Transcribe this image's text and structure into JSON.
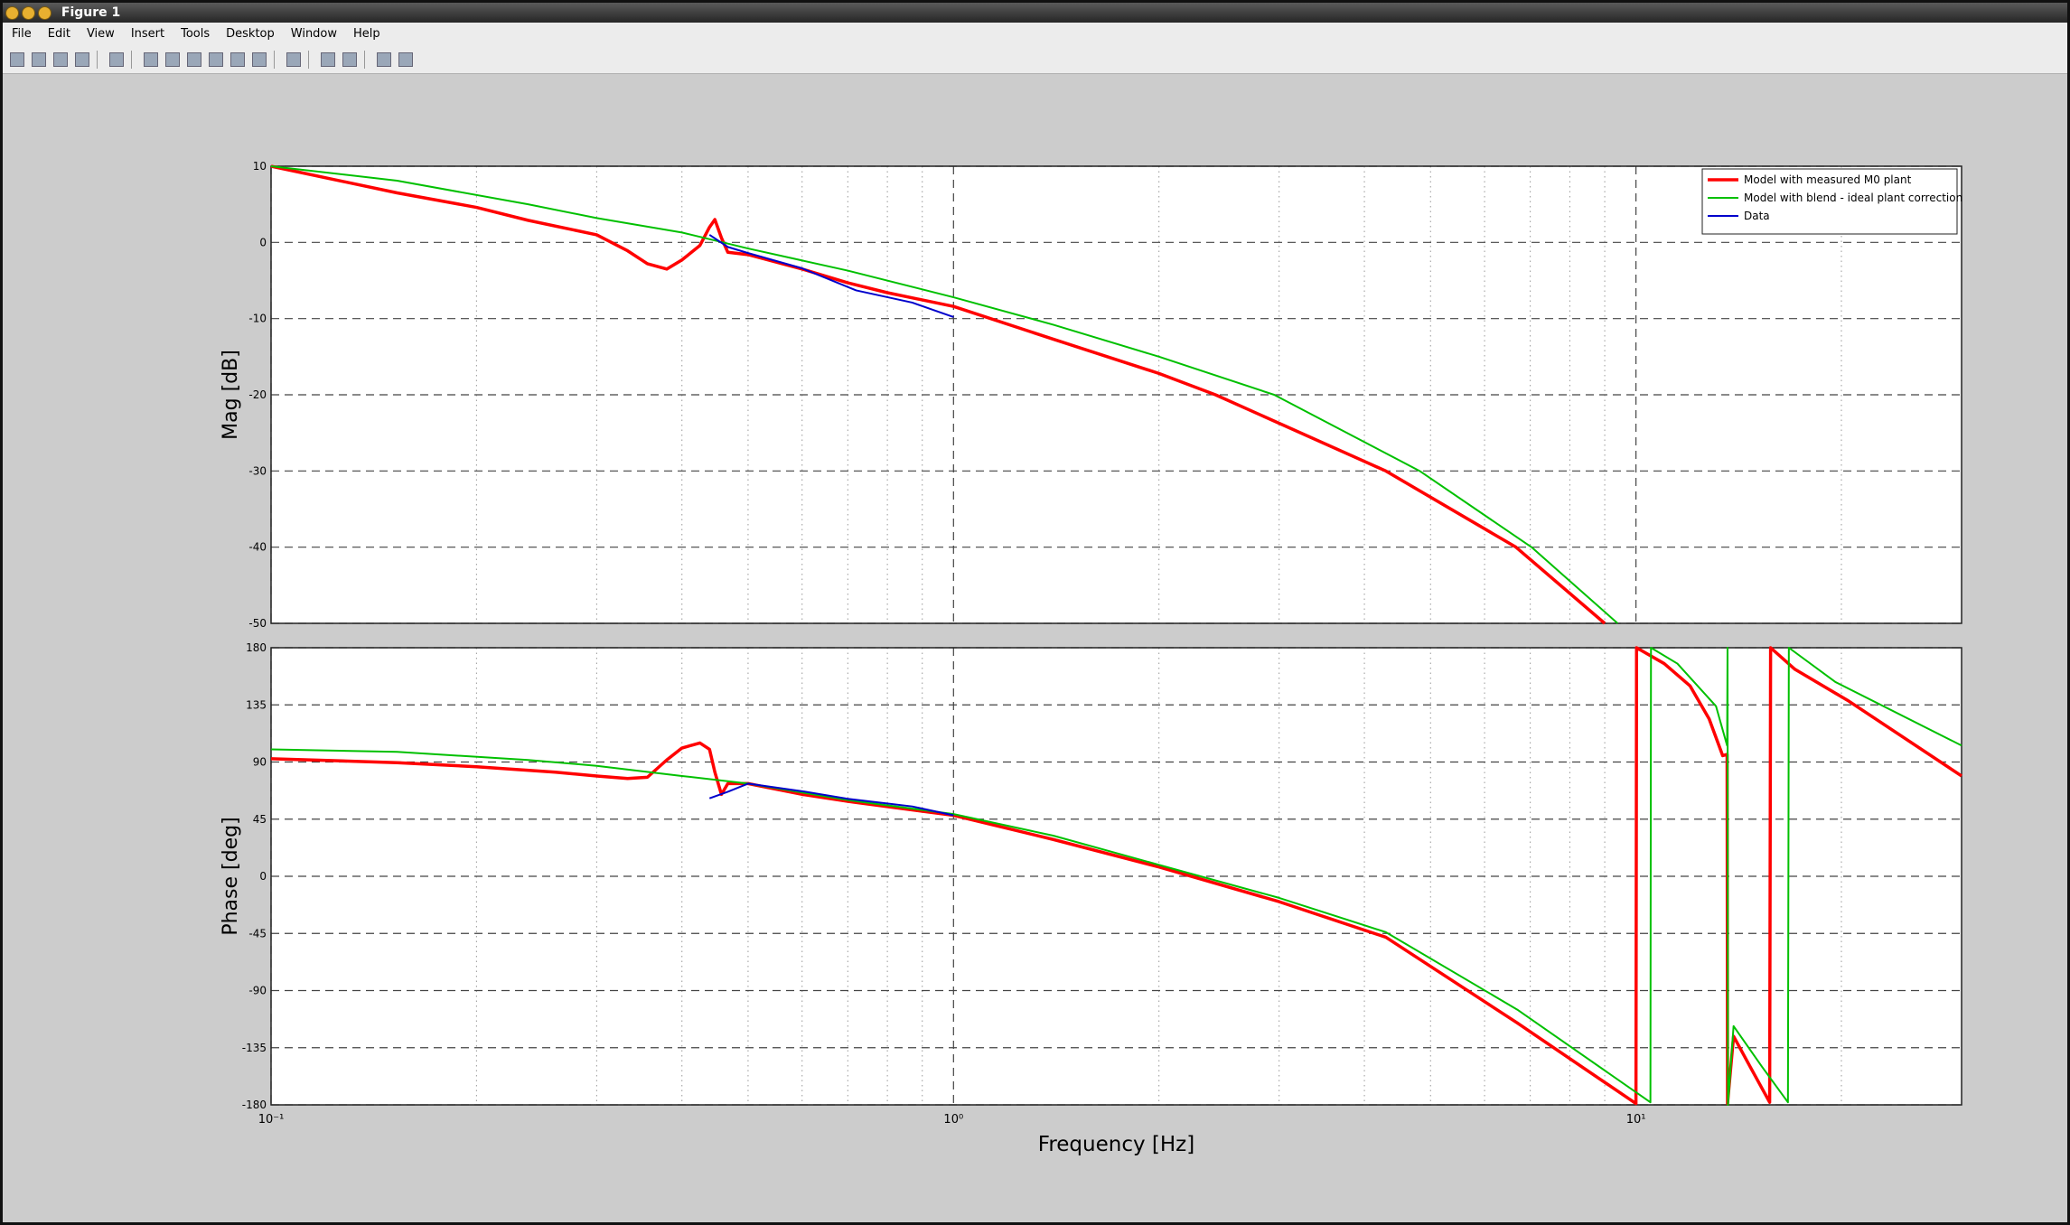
{
  "window": {
    "title": "Figure 1"
  },
  "menu": [
    "File",
    "Edit",
    "View",
    "Insert",
    "Tools",
    "Desktop",
    "Window",
    "Help"
  ],
  "chart_data": [
    {
      "type": "line",
      "ylabel": "Mag [dB]",
      "xscale": "log",
      "grid": true,
      "show_xtick_labels": false,
      "xlim": [
        0.1,
        30
      ],
      "xticks": [
        0.1,
        1,
        10
      ],
      "xminorticks": [
        0.2,
        0.3,
        0.4,
        0.5,
        0.6,
        0.7,
        0.8,
        0.9,
        2,
        3,
        4,
        5,
        6,
        7,
        8,
        9,
        20
      ],
      "ylim": [
        -50,
        10
      ],
      "yticks": [
        -50,
        -40,
        -30,
        -20,
        -10,
        0,
        10
      ],
      "legend": "northeast",
      "series": [
        {
          "name": "Model with measured M0 plant",
          "color": "#ff0000",
          "width": 3.5,
          "x": [
            0.1,
            0.153,
            0.2,
            0.238,
            0.3,
            0.333,
            0.356,
            0.38,
            0.4,
            0.425,
            0.439,
            0.447,
            0.457,
            0.467,
            0.5,
            0.6,
            0.7,
            0.8,
            1,
            1.4,
            2,
            2.42,
            4.3,
            6.67,
            9.0
          ],
          "values": [
            10,
            6.5,
            4.6,
            2.9,
            1,
            -1.1,
            -2.8,
            -3.5,
            -2.3,
            -0.4,
            2,
            3,
            0.6,
            -1.3,
            -1.6,
            -3.5,
            -5.3,
            -6.6,
            -8.4,
            -12.7,
            -17.2,
            -20,
            -30,
            -40,
            -50
          ]
        },
        {
          "name": "Model with blend - ideal plant correction",
          "color": "#00c000",
          "width": 2,
          "x": [
            0.1,
            0.153,
            0.238,
            0.3,
            0.4,
            0.5,
            0.7,
            1,
            1.4,
            2,
            2.95,
            4.82,
            7.03,
            9.4
          ],
          "values": [
            10,
            8.1,
            5,
            3.2,
            1.3,
            -0.8,
            -3.7,
            -7.2,
            -10.8,
            -15,
            -20,
            -30,
            -40,
            -50
          ]
        },
        {
          "name": "Data",
          "color": "#0000cc",
          "width": 2,
          "x": [
            0.439,
            0.467,
            0.5,
            0.6,
            0.72,
            0.87,
            1
          ],
          "values": [
            1,
            -0.6,
            -1.4,
            -3.4,
            -6.3,
            -7.9,
            -9.8
          ]
        }
      ]
    },
    {
      "type": "line",
      "ylabel": "Phase [deg]",
      "xlabel": "Frequency [Hz]",
      "xscale": "log",
      "grid": true,
      "show_xtick_labels": true,
      "xlim": [
        0.1,
        30
      ],
      "xticks": [
        {
          "value": 0.1,
          "label": "10⁻¹"
        },
        {
          "value": 1,
          "label": "10⁰"
        },
        {
          "value": 10,
          "label": "10¹"
        }
      ],
      "xminorticks": [
        0.2,
        0.3,
        0.4,
        0.5,
        0.6,
        0.7,
        0.8,
        0.9,
        2,
        3,
        4,
        5,
        6,
        7,
        8,
        9,
        20
      ],
      "ylim": [
        -180,
        180
      ],
      "yticks": [
        -180,
        -135,
        -90,
        -45,
        0,
        45,
        90,
        135,
        180
      ],
      "series": [
        {
          "name": "Model with measured M0 plant",
          "color": "#ff0000",
          "width": 3.5,
          "x": [
            0.1,
            0.153,
            0.2,
            0.261,
            0.3,
            0.333,
            0.356,
            0.38,
            0.4,
            0.425,
            0.439,
            0.447,
            0.457,
            0.467,
            0.5,
            0.6,
            0.7,
            1,
            1.4,
            2,
            3,
            4.3,
            6.7,
            10,
            10.02,
            11,
            12,
            12.8,
            13.4,
            13.6,
            13.62,
            13.9,
            14.7,
            15.7,
            15.75,
            17.1,
            20.5,
            30
          ],
          "values": [
            92.6,
            89.5,
            86.3,
            82,
            79,
            77,
            78,
            91.6,
            101,
            105,
            100,
            82,
            64.5,
            73,
            73,
            64.5,
            59,
            48,
            29,
            7.3,
            -20,
            -48,
            -115.5,
            -179,
            180,
            167.5,
            150,
            124,
            95,
            96,
            -179,
            -126,
            -150,
            -178,
            180,
            163,
            138,
            79
          ]
        },
        {
          "name": "Model with blend - ideal plant correction",
          "color": "#00c000",
          "width": 2,
          "x": [
            0.1,
            0.153,
            0.238,
            0.3,
            0.4,
            0.5,
            0.7,
            1,
            1.4,
            2,
            3,
            4.3,
            6.7,
            10.5,
            10.52,
            11.5,
            13.1,
            13.6,
            13.62,
            13.64,
            13.9,
            15.3,
            16.7,
            16.75,
            19.6,
            30
          ],
          "values": [
            100,
            98,
            91.6,
            87,
            79,
            73,
            60,
            49,
            32,
            9,
            -17,
            -44,
            -105,
            -178,
            180,
            167.5,
            134,
            103,
            180,
            -180,
            -118,
            -150,
            -178,
            180,
            153,
            103
          ]
        },
        {
          "name": "Data",
          "color": "#0000cc",
          "width": 2,
          "x": [
            0.439,
            0.467,
            0.5,
            0.6,
            0.7,
            0.87,
            1
          ],
          "values": [
            61.4,
            66.6,
            73,
            67,
            61,
            55,
            48
          ]
        }
      ]
    }
  ]
}
